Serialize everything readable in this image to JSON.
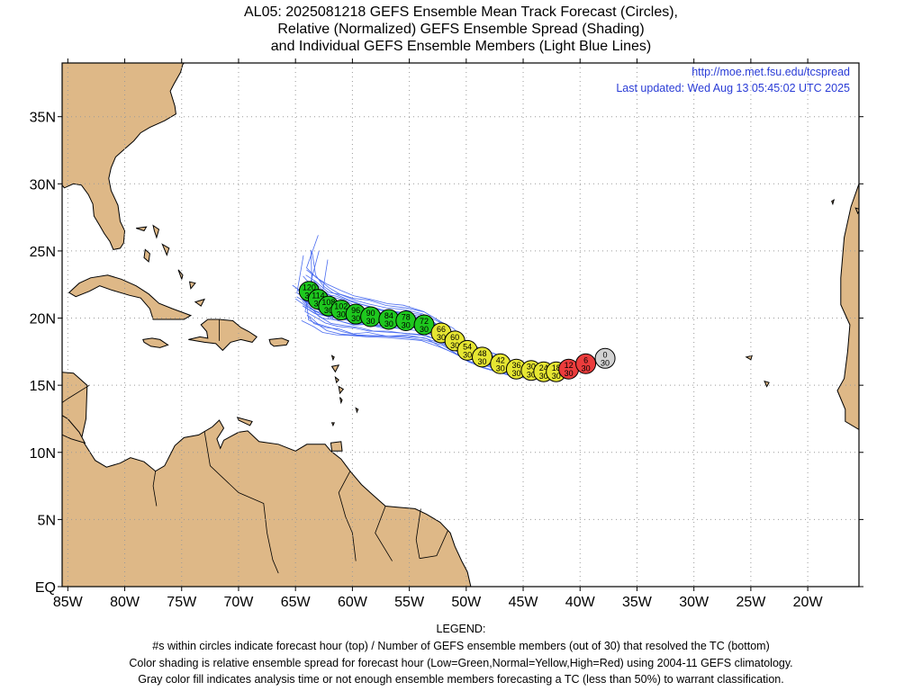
{
  "title": {
    "line1": "AL05: 2025081218 GEFS Ensemble Mean Track Forecast (Circles),",
    "line2": "Relative (Normalized) GEFS Ensemble Spread (Shading)",
    "line3": "and Individual GEFS Ensemble Members (Light Blue Lines)"
  },
  "header_links": {
    "url": "http://moe.met.fsu.edu/tcspread",
    "updated": "Last updated: Wed Aug 13 05:45:02 UTC 2025"
  },
  "axes": {
    "lat_labels": [
      "35N",
      "30N",
      "25N",
      "20N",
      "15N",
      "10N",
      "5N",
      "EQ"
    ],
    "lat_values": [
      35,
      30,
      25,
      20,
      15,
      10,
      5,
      0
    ],
    "lon_labels": [
      "85W",
      "80W",
      "75W",
      "70W",
      "65W",
      "60W",
      "55W",
      "50W",
      "45W",
      "40W",
      "35W",
      "30W",
      "25W",
      "20W"
    ],
    "lon_values": [
      -85,
      -80,
      -75,
      -70,
      -65,
      -60,
      -55,
      -50,
      -45,
      -40,
      -35,
      -30,
      -25,
      -20
    ],
    "lon_range": [
      -85.5,
      -15.5
    ],
    "lat_range": [
      0,
      39
    ]
  },
  "colors": {
    "land": "#deb887",
    "ocean": "#ffffff",
    "track_lines": "#4a6cf0",
    "low_spread": "#1ec81e",
    "normal_spread": "#e6e632",
    "high_spread": "#eb3c3c",
    "analysis": "#d2d2d2",
    "link": "#2a3cd6"
  },
  "forecast_points": [
    {
      "hour": "0",
      "members": "30",
      "lon": -37.8,
      "lat": 17.0,
      "category": "analysis"
    },
    {
      "hour": "6",
      "members": "30",
      "lon": -39.5,
      "lat": 16.6,
      "category": "high"
    },
    {
      "hour": "12",
      "members": "30",
      "lon": -41.0,
      "lat": 16.2,
      "category": "high"
    },
    {
      "hour": "18",
      "members": "30",
      "lon": -42.1,
      "lat": 16.0,
      "category": "normal"
    },
    {
      "hour": "24",
      "members": "30",
      "lon": -43.2,
      "lat": 16.0,
      "category": "normal"
    },
    {
      "hour": "30",
      "members": "30",
      "lon": -44.3,
      "lat": 16.1,
      "category": "normal"
    },
    {
      "hour": "36",
      "members": "30",
      "lon": -45.6,
      "lat": 16.2,
      "category": "normal"
    },
    {
      "hour": "42",
      "members": "30",
      "lon": -47.0,
      "lat": 16.6,
      "category": "normal"
    },
    {
      "hour": "48",
      "members": "30",
      "lon": -48.6,
      "lat": 17.1,
      "category": "normal"
    },
    {
      "hour": "54",
      "members": "30",
      "lon": -49.9,
      "lat": 17.6,
      "category": "normal"
    },
    {
      "hour": "60",
      "members": "30",
      "lon": -51.0,
      "lat": 18.3,
      "category": "normal"
    },
    {
      "hour": "66",
      "members": "30",
      "lon": -52.2,
      "lat": 18.9,
      "category": "normal"
    },
    {
      "hour": "72",
      "members": "30",
      "lon": -53.7,
      "lat": 19.5,
      "category": "low"
    },
    {
      "hour": "78",
      "members": "30",
      "lon": -55.3,
      "lat": 19.8,
      "category": "low"
    },
    {
      "hour": "84",
      "members": "30",
      "lon": -56.8,
      "lat": 19.9,
      "category": "low"
    },
    {
      "hour": "90",
      "members": "30",
      "lon": -58.4,
      "lat": 20.1,
      "category": "low"
    },
    {
      "hour": "96",
      "members": "30",
      "lon": -59.7,
      "lat": 20.3,
      "category": "low"
    },
    {
      "hour": "102",
      "members": "30",
      "lon": -61.0,
      "lat": 20.6,
      "category": "low"
    },
    {
      "hour": "108",
      "members": "30",
      "lon": -62.1,
      "lat": 20.9,
      "category": "low"
    },
    {
      "hour": "114",
      "members": "30",
      "lon": -63.0,
      "lat": 21.4,
      "category": "low"
    },
    {
      "hour": "120",
      "members": "30",
      "lon": -63.8,
      "lat": 22.0,
      "category": "low"
    }
  ],
  "legend": {
    "heading": "LEGEND:",
    "line1": "#s within circles indicate forecast hour (top) / Number of GEFS ensemble members (out of 30) that resolved the TC (bottom)",
    "line2": "Color shading is relative ensemble spread for forecast hour (Low=Green,Normal=Yellow,High=Red) using 2004-11 GEFS climatology.",
    "line3": "Gray color fill indicates analysis time or not enough ensemble members forecasting a TC (less than 50%) to warrant classification."
  }
}
